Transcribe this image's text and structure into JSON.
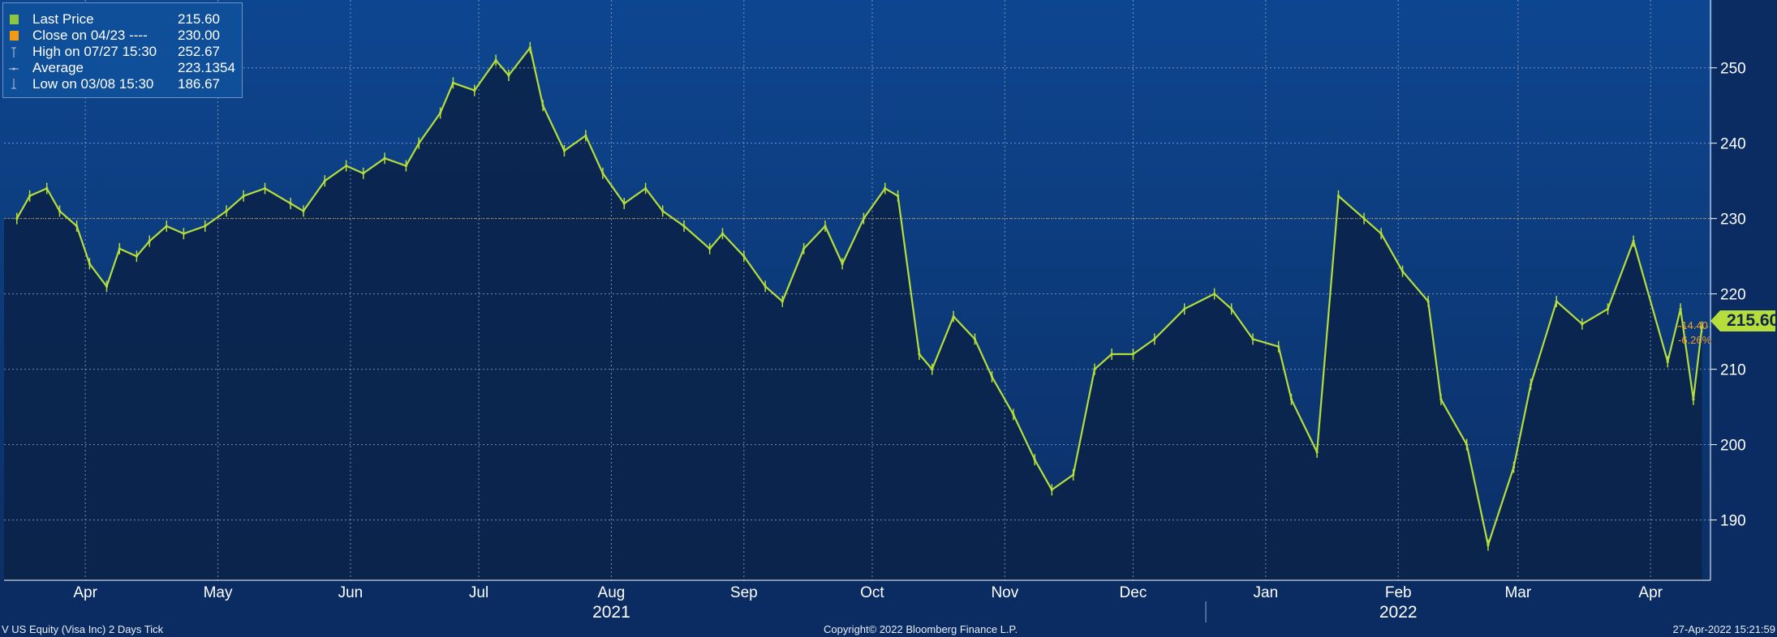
{
  "legend": {
    "items": [
      {
        "label": "Last Price",
        "value": "215.60",
        "symbol": "square-green"
      },
      {
        "label": "Close on 04/23 ----",
        "value": "230.00",
        "symbol": "square-orange"
      },
      {
        "label": "High on 07/27 15:30",
        "value": "252.67",
        "symbol": "high-marker"
      },
      {
        "label": "Average",
        "value": "223.1354",
        "symbol": "average-marker"
      },
      {
        "label": "Low on 03/08 15:30",
        "value": "186.67",
        "symbol": "low-marker"
      }
    ]
  },
  "price_tag": "215.60",
  "change": {
    "abs": "-14.40",
    "pct": "-6.26%"
  },
  "footer": {
    "left": "V US Equity (Visa Inc) 2 Days  Tick",
    "center": "Copyright© 2022 Bloomberg Finance L.P.",
    "right": "27-Apr-2022 15:21:59"
  },
  "colors": {
    "background": "#0a2c63",
    "plot_top": "#0d4690",
    "plot_bottom": "#0c2f66",
    "area_fill": "#0a2248",
    "line": "#b5de3c",
    "close_line": "#d9a12b",
    "grid": "#8ea6cc"
  },
  "chart_data": {
    "type": "line",
    "title": "",
    "series": [
      {
        "name": "Last Price",
        "x": [
          "2021-03-29",
          "2021-04-01",
          "2021-04-05",
          "2021-04-08",
          "2021-04-12",
          "2021-04-15",
          "2021-04-19",
          "2021-04-22",
          "2021-04-26",
          "2021-04-29",
          "2021-05-03",
          "2021-05-07",
          "2021-05-12",
          "2021-05-17",
          "2021-05-21",
          "2021-05-26",
          "2021-06-01",
          "2021-06-04",
          "2021-06-09",
          "2021-06-14",
          "2021-06-18",
          "2021-06-23",
          "2021-06-28",
          "2021-07-01",
          "2021-07-06",
          "2021-07-09",
          "2021-07-14",
          "2021-07-19",
          "2021-07-22",
          "2021-07-27",
          "2021-07-30",
          "2021-08-04",
          "2021-08-09",
          "2021-08-13",
          "2021-08-18",
          "2021-08-23",
          "2021-08-27",
          "2021-09-01",
          "2021-09-07",
          "2021-09-10",
          "2021-09-15",
          "2021-09-20",
          "2021-09-24",
          "2021-09-29",
          "2021-10-04",
          "2021-10-08",
          "2021-10-13",
          "2021-10-18",
          "2021-10-21",
          "2021-10-26",
          "2021-10-29",
          "2021-11-03",
          "2021-11-08",
          "2021-11-12",
          "2021-11-17",
          "2021-11-22",
          "2021-11-26",
          "2021-12-01",
          "2021-12-06",
          "2021-12-10",
          "2021-12-15",
          "2021-12-20",
          "2021-12-27",
          "2022-01-03",
          "2022-01-07",
          "2022-01-12",
          "2022-01-18",
          "2022-01-21",
          "2022-01-27",
          "2022-02-01",
          "2022-02-07",
          "2022-02-11",
          "2022-02-16",
          "2022-02-22",
          "2022-02-25",
          "2022-03-03",
          "2022-03-08",
          "2022-03-14",
          "2022-03-18",
          "2022-03-24",
          "2022-03-30",
          "2022-04-05",
          "2022-04-11",
          "2022-04-19",
          "2022-04-22",
          "2022-04-25",
          "2022-04-27"
        ],
        "y": [
          230,
          233,
          234,
          231,
          229,
          224,
          221,
          226,
          225,
          227,
          229,
          228,
          229,
          231,
          233,
          234,
          232,
          231,
          235,
          237,
          236,
          238,
          237,
          240,
          244,
          248,
          247,
          251,
          249,
          252.67,
          245,
          239,
          241,
          236,
          232,
          234,
          231,
          229,
          226,
          228,
          225,
          221,
          219,
          226,
          229,
          224,
          230,
          234,
          233,
          212,
          210,
          217,
          214,
          209,
          204,
          198,
          194,
          196,
          210,
          212,
          212,
          214,
          218,
          220,
          218,
          214,
          213,
          206,
          199,
          233,
          230,
          228,
          223,
          219,
          206,
          200,
          186.67,
          197,
          208,
          219,
          216,
          218,
          227,
          211,
          218,
          206,
          215.6
        ]
      }
    ],
    "reference_lines": [
      {
        "name": "Close on 04/23",
        "value": 230.0
      },
      {
        "name": "Average",
        "value": 223.1354
      }
    ],
    "high": {
      "label": "High on 07/27 15:30",
      "value": 252.67
    },
    "low": {
      "label": "Low on 03/08 15:30",
      "value": 186.67
    },
    "ylim": [
      182,
      259
    ],
    "y_ticks": [
      190,
      200,
      210,
      220,
      230,
      240,
      250
    ],
    "xlim": [
      "2021-03-26",
      "2022-04-29"
    ],
    "month_ticks": [
      {
        "label": "Apr",
        "date": "2021-04-14"
      },
      {
        "label": "May",
        "date": "2021-05-15"
      },
      {
        "label": "Jun",
        "date": "2021-06-15"
      },
      {
        "label": "Jul",
        "date": "2021-07-15"
      },
      {
        "label": "Aug",
        "date": "2021-08-15"
      },
      {
        "label": "Sep",
        "date": "2021-09-15"
      },
      {
        "label": "Oct",
        "date": "2021-10-15"
      },
      {
        "label": "Nov",
        "date": "2021-11-15"
      },
      {
        "label": "Dec",
        "date": "2021-12-15"
      },
      {
        "label": "Jan",
        "date": "2022-01-15"
      },
      {
        "label": "Feb",
        "date": "2022-02-15"
      },
      {
        "label": "Mar",
        "date": "2022-03-15"
      },
      {
        "label": "Apr",
        "date": "2022-04-15"
      }
    ],
    "year_labels": [
      {
        "label": "2021",
        "date": "2021-08-15"
      },
      {
        "label": "2022",
        "date": "2022-02-15"
      }
    ],
    "grid": true,
    "legend_position": "top-left"
  }
}
